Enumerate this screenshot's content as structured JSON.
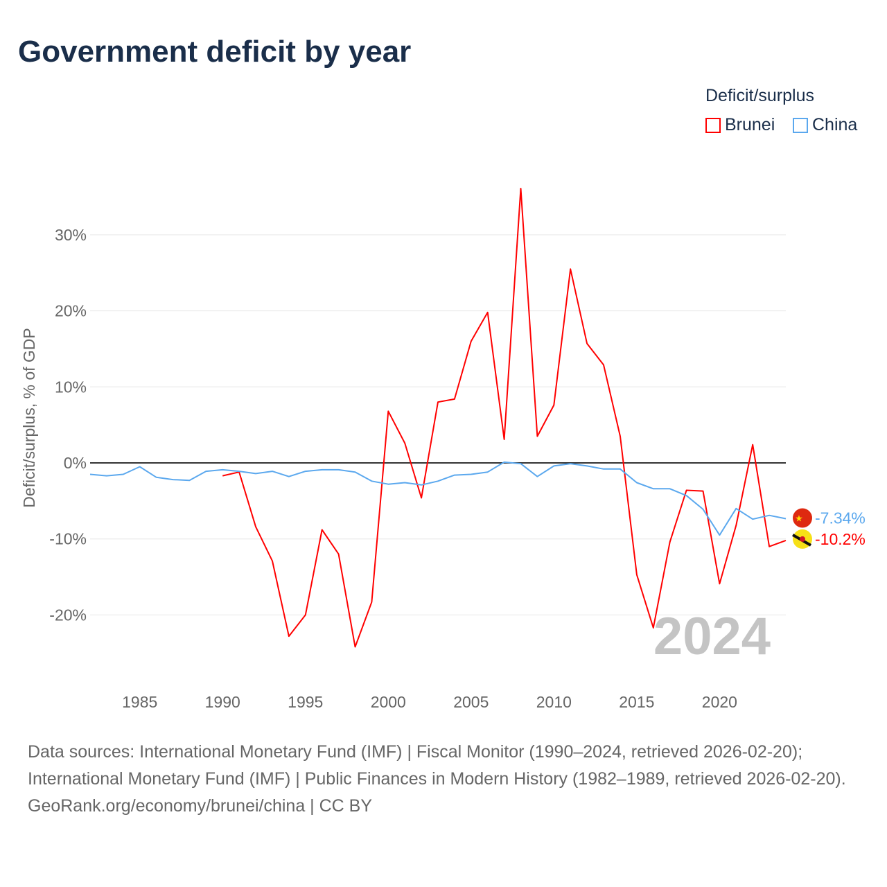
{
  "title": "Government deficit by year",
  "legend": {
    "title": "Deficit/surplus",
    "items": [
      {
        "name": "Brunei",
        "color": "#ff0000"
      },
      {
        "name": "China",
        "color": "#5ba8ee"
      }
    ]
  },
  "footer": {
    "sources": "Data sources: International Monetary Fund (IMF) | Fiscal Monitor (1990–2024, retrieved 2026-02-20); International Monetary Fund (IMF) | Public Finances in Modern History (1982–1989, retrieved 2026-02-20).",
    "credit": "GeoRank.org/economy/brunei/china | CC BY"
  },
  "chart_data": {
    "type": "line",
    "title": "Government deficit by year",
    "xlabel": "",
    "ylabel": "Deficit/surplus, % of GDP",
    "xlim": [
      1982,
      2024
    ],
    "ylim": [
      -27,
      37
    ],
    "xticks": [
      1985,
      1990,
      1995,
      2000,
      2005,
      2010,
      2015,
      2020
    ],
    "yticks": [
      {
        "v": 30,
        "label": "30%"
      },
      {
        "v": 20,
        "label": "20%"
      },
      {
        "v": 10,
        "label": "10%"
      },
      {
        "v": 0,
        "label": "0%"
      },
      {
        "v": -10,
        "label": "-10%"
      },
      {
        "v": -20,
        "label": "-20%"
      }
    ],
    "grid": true,
    "year_watermark": "2024",
    "legend_position": "top-right",
    "series": [
      {
        "name": "Brunei",
        "color": "#ff0000",
        "end_label": "-10.2%",
        "start_year": 1990,
        "values": [
          -1.7,
          -1.2,
          -8.4,
          -12.9,
          -22.8,
          -20,
          -8.8,
          -12,
          -24.2,
          -18.3,
          6.8,
          2.6,
          -4.6,
          8.0,
          8.4,
          16,
          19.8,
          3.1,
          36.1,
          3.5,
          7.6,
          25.5,
          15.7,
          12.9,
          3.5,
          -14.7,
          -21.7,
          -10.4,
          -3.6,
          -3.7,
          -15.9,
          -8.2,
          2.4,
          -11,
          -10.2
        ]
      },
      {
        "name": "China",
        "color": "#5ba8ee",
        "end_label": "-7.34%",
        "start_year": 1982,
        "values": [
          -1.5,
          -1.7,
          -1.5,
          -0.5,
          -1.9,
          -2.2,
          -2.3,
          -1.1,
          -0.9,
          -1.1,
          -1.4,
          -1.1,
          -1.8,
          -1.1,
          -0.9,
          -0.9,
          -1.2,
          -2.4,
          -2.8,
          -2.6,
          -2.9,
          -2.4,
          -1.6,
          -1.5,
          -1.2,
          0.1,
          -0.1,
          -1.8,
          -0.4,
          -0.1,
          -0.4,
          -0.8,
          -0.8,
          -2.6,
          -3.4,
          -3.4,
          -4.3,
          -6.1,
          -9.5,
          -6.0,
          -7.4,
          -6.9,
          -7.34
        ]
      }
    ]
  }
}
